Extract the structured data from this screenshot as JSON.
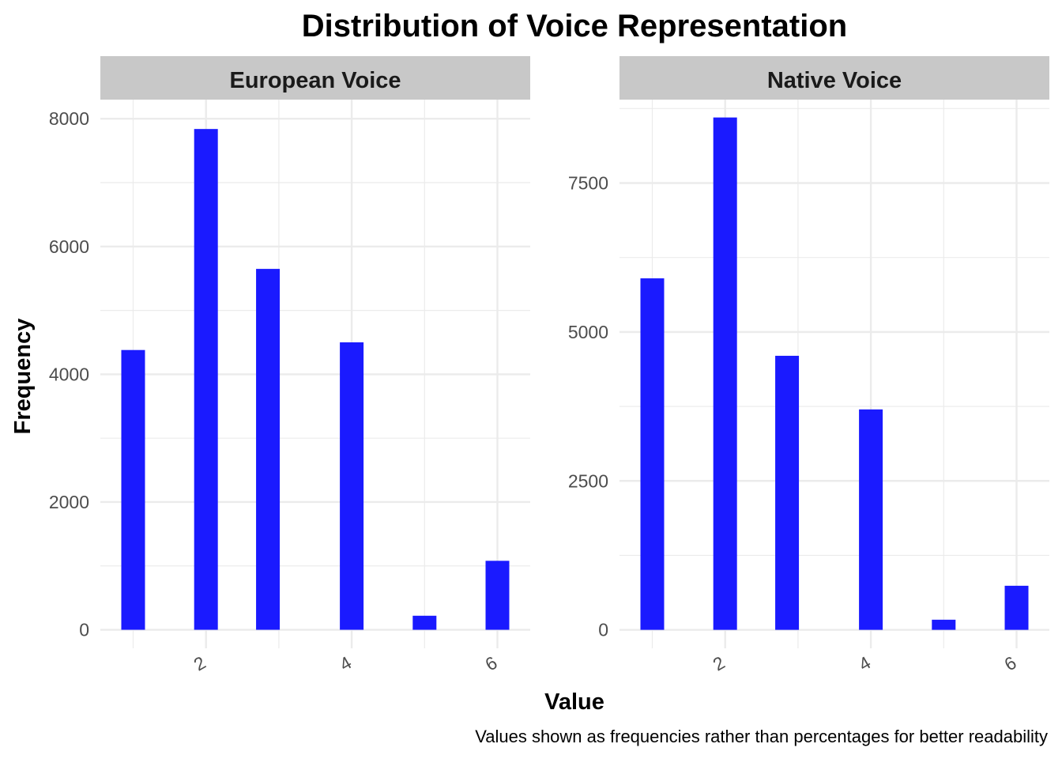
{
  "title": "Distribution of Voice Representation",
  "caption": "Values shown as frequencies rather than percentages for better readability",
  "colors": {
    "bar": "#1a1aff",
    "strip": "#c8c8c8",
    "grid": "#ebebeb",
    "text": "#000000",
    "tick_text": "#4d4d4d"
  },
  "chart_data": {
    "type": "bar",
    "xlabel": "Value",
    "ylabel": "Frequency",
    "grid": true,
    "legend": "none",
    "x_ticks": [
      2,
      4,
      6
    ],
    "xlim": [
      0.55,
      6.45
    ],
    "panels": [
      {
        "name": "European Voice",
        "x": [
          1,
          2,
          2.85,
          4,
          5,
          6
        ],
        "values": [
          4380,
          7840,
          5650,
          4500,
          220,
          1080
        ],
        "ylim": [
          -290,
          8300
        ],
        "y_ticks": [
          0,
          2000,
          4000,
          6000,
          8000
        ]
      },
      {
        "name": "Native Voice",
        "x": [
          1,
          2,
          2.85,
          4,
          5,
          6
        ],
        "values": [
          5900,
          8600,
          4600,
          3700,
          170,
          740
        ],
        "ylim": [
          -310,
          8900
        ],
        "y_ticks": [
          0,
          2500,
          5000,
          7500
        ]
      }
    ]
  }
}
